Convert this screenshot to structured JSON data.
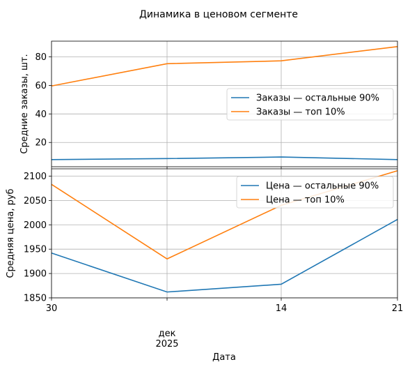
{
  "title": "Динамика в ценовом сегменте",
  "xlabel": "Дата",
  "x_tick_labels": [
    "30",
    "",
    "14",
    "21"
  ],
  "x_tick_month": "дек",
  "x_tick_year": "2025",
  "chart_data": [
    {
      "type": "line",
      "x": [
        "2025-11-30",
        "2025-12-07",
        "2025-12-14",
        "2025-12-21"
      ],
      "ylabel": "Средние заказы, шт.",
      "ylim": [
        3,
        91
      ],
      "yticks": [
        20,
        40,
        60,
        80
      ],
      "grid": true,
      "legend_position": "center-right",
      "series": [
        {
          "name": "Заказы — остальные 90%",
          "color": "#1f77b4",
          "values": [
            8.0,
            8.7,
            9.8,
            8.0
          ]
        },
        {
          "name": "Заказы — топ 10%",
          "color": "#ff7f0e",
          "values": [
            59.6,
            75.2,
            77.2,
            87.2
          ]
        }
      ]
    },
    {
      "type": "line",
      "x": [
        "2025-11-30",
        "2025-12-07",
        "2025-12-14",
        "2025-12-21"
      ],
      "ylabel": "Средняя цена, руб",
      "ylim": [
        1850,
        2115
      ],
      "yticks": [
        1850,
        1900,
        1950,
        2000,
        2050,
        2100
      ],
      "grid": true,
      "legend_position": "top-right",
      "series": [
        {
          "name": "Цена — остальные 90%",
          "color": "#1f77b4",
          "values": [
            1942,
            1862,
            1878,
            2011
          ]
        },
        {
          "name": "Цена — топ 10%",
          "color": "#ff7f0e",
          "values": [
            2083,
            1930,
            2040,
            2111
          ]
        }
      ]
    }
  ]
}
